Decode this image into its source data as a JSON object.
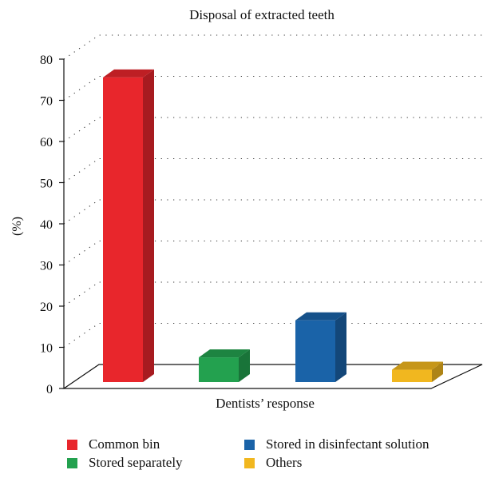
{
  "chart_data": {
    "type": "bar",
    "title": "Disposal of extracted teeth",
    "xlabel": "Dentists’ response",
    "ylabel": "(%)",
    "ylim": [
      0,
      80
    ],
    "yticks": [
      0,
      10,
      20,
      30,
      40,
      50,
      60,
      70,
      80
    ],
    "categories": [
      "Common bin",
      "Stored separately",
      "Stored in disinfectant solution",
      "Others"
    ],
    "values": [
      74,
      6,
      15,
      3
    ],
    "colors": [
      "#e8262c",
      "#23a14f",
      "#1a63a8",
      "#f1b71f"
    ],
    "grid": true,
    "three_d": true,
    "legend_position": "bottom"
  }
}
